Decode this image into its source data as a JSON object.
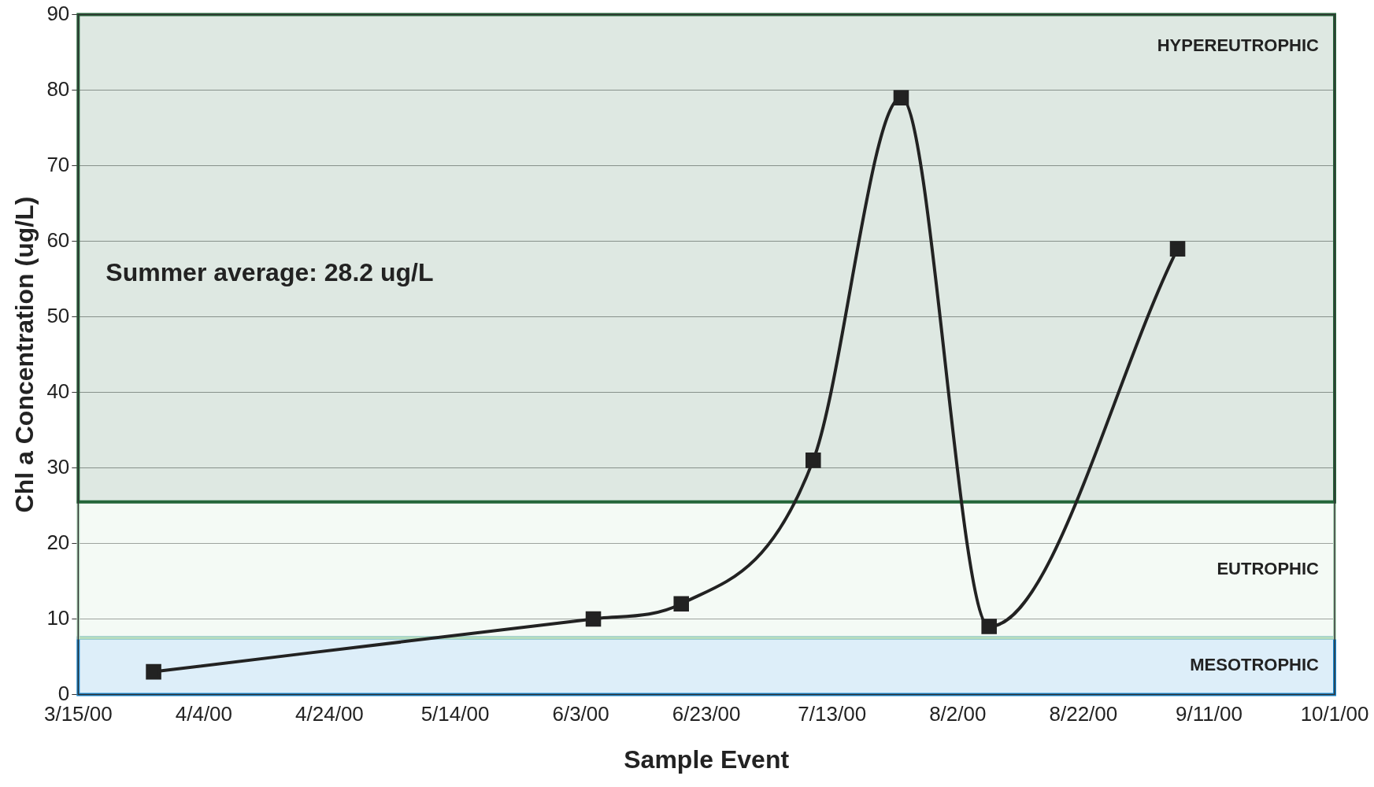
{
  "chart_data": {
    "type": "line",
    "xlabel": "Sample Event",
    "ylabel": "Chl a Concentration (ug/L)",
    "x": [
      "2000-03-27",
      "2000-06-05",
      "2000-06-19",
      "2000-07-10",
      "2000-07-24",
      "2000-08-07",
      "2000-09-06"
    ],
    "series": [
      {
        "color": "#222222",
        "values": [
          3,
          10,
          12,
          31,
          79,
          9,
          59
        ]
      }
    ],
    "xlim": [
      "2000-03-15",
      "2000-10-01"
    ],
    "xticks": [
      {
        "value": "2000-03-15",
        "label": "3/15/00"
      },
      {
        "value": "2000-04-04",
        "label": "4/4/00"
      },
      {
        "value": "2000-04-24",
        "label": "4/24/00"
      },
      {
        "value": "2000-05-14",
        "label": "5/14/00"
      },
      {
        "value": "2000-06-03",
        "label": "6/3/00"
      },
      {
        "value": "2000-06-23",
        "label": "6/23/00"
      },
      {
        "value": "2000-07-13",
        "label": "7/13/00"
      },
      {
        "value": "2000-08-02",
        "label": "8/2/00"
      },
      {
        "value": "2000-08-22",
        "label": "8/22/00"
      },
      {
        "value": "2000-09-11",
        "label": "9/11/00"
      },
      {
        "value": "2000-10-01",
        "label": "10/1/00"
      }
    ],
    "ylim": [
      0,
      90
    ],
    "yticks": [
      0,
      10,
      20,
      30,
      40,
      50,
      60,
      70,
      80,
      90
    ],
    "bands": [
      {
        "axis": "y",
        "from": 0,
        "to": 7.5,
        "label": "MESOTROPHIC",
        "color": "#1a8ad4"
      },
      {
        "axis": "y",
        "from": 7.5,
        "to": 25.5,
        "label": "EUTROPHIC",
        "color": "#b5dcbf"
      },
      {
        "axis": "y",
        "from": 25.5,
        "to": 90,
        "label": "HYPEREUTROPHIC",
        "color": "#24663a"
      }
    ],
    "annotations": [
      "Summer average: 28.2 ug/L"
    ],
    "grid": "y",
    "legend": false,
    "marker": "square",
    "line_style": "solid"
  }
}
